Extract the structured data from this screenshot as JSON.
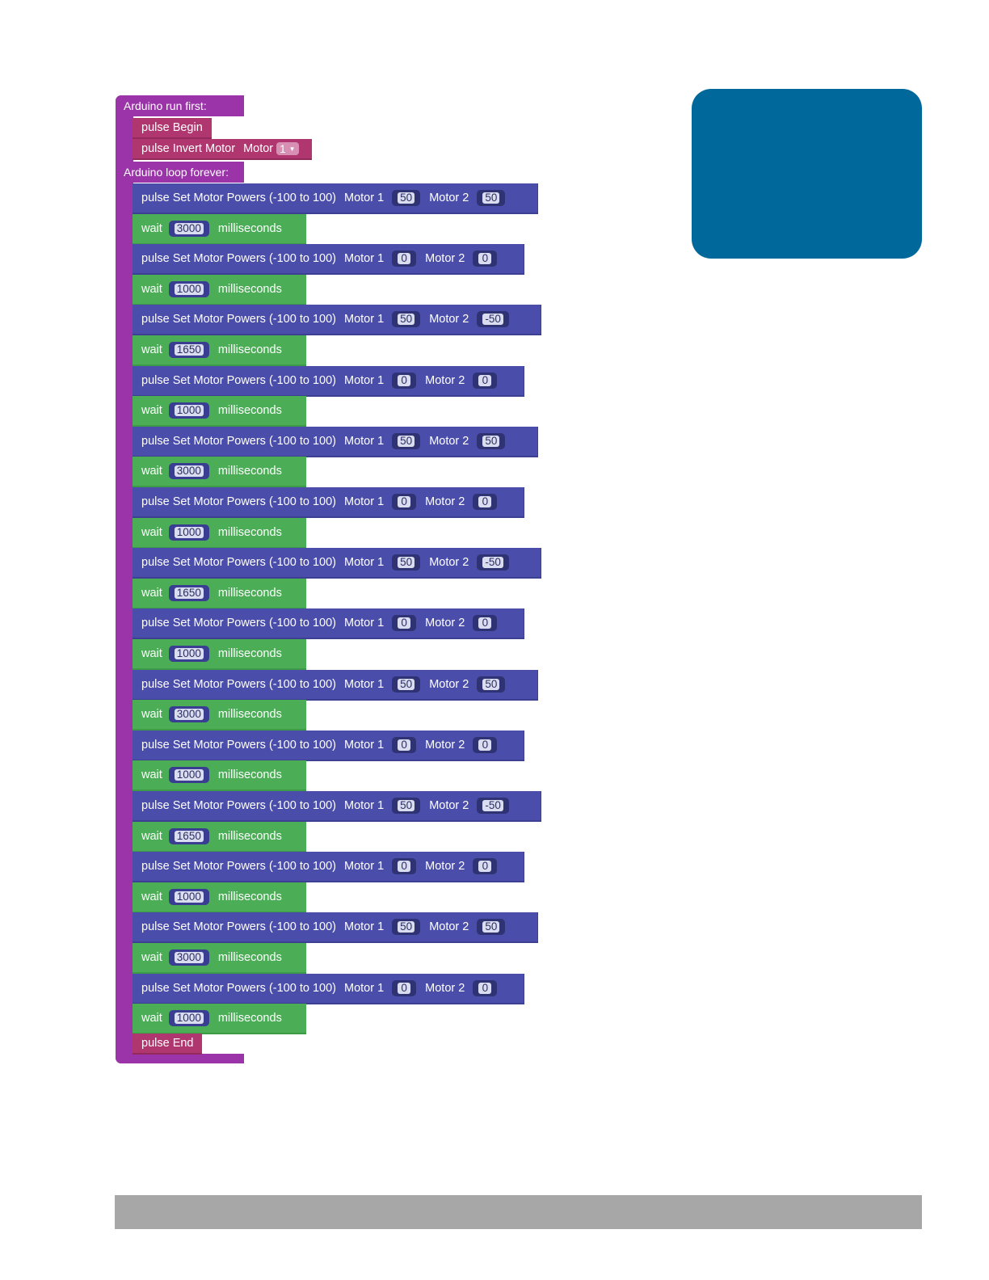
{
  "setup": {
    "label": "Arduino run first:",
    "blocks": [
      {
        "label": "pulse Begin"
      },
      {
        "label": "pulse Invert Motor",
        "param_label": "Motor",
        "value": "1"
      }
    ]
  },
  "loop": {
    "label": "Arduino loop forever:",
    "set_label": "pulse Set Motor Powers (-100 to 100)",
    "motor1_label": "Motor 1",
    "motor2_label": "Motor 2",
    "wait_label": "wait",
    "ms_label": "milliseconds",
    "steps": [
      {
        "m1": "50",
        "m2": "50",
        "wait": "3000"
      },
      {
        "m1": "0",
        "m2": "0",
        "wait": "1000"
      },
      {
        "m1": "50",
        "m2": "-50",
        "wait": "1650"
      },
      {
        "m1": "0",
        "m2": "0",
        "wait": "1000"
      },
      {
        "m1": "50",
        "m2": "50",
        "wait": "3000"
      },
      {
        "m1": "0",
        "m2": "0",
        "wait": "1000"
      },
      {
        "m1": "50",
        "m2": "-50",
        "wait": "1650"
      },
      {
        "m1": "0",
        "m2": "0",
        "wait": "1000"
      },
      {
        "m1": "50",
        "m2": "50",
        "wait": "3000"
      },
      {
        "m1": "0",
        "m2": "0",
        "wait": "1000"
      },
      {
        "m1": "50",
        "m2": "-50",
        "wait": "1650"
      },
      {
        "m1": "0",
        "m2": "0",
        "wait": "1000"
      },
      {
        "m1": "50",
        "m2": "50",
        "wait": "3000"
      },
      {
        "m1": "0",
        "m2": "0",
        "wait": "1000"
      }
    ],
    "end_label": "pulse End"
  },
  "colors": {
    "container": "#9a34a8",
    "motor_block": "#4a4eaa",
    "wait_block": "#4cad57",
    "pulse_block": "#b0366f",
    "info_panel": "#00689b",
    "footer_bar": "#a7a7a7"
  }
}
